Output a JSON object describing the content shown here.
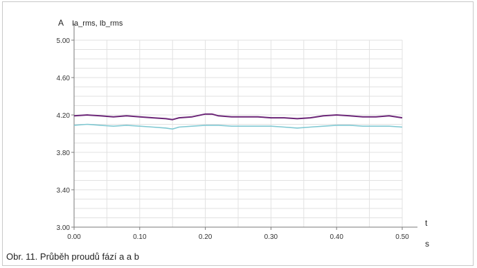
{
  "caption": "Obr. 11. Průběh proudů fází a a b",
  "chart_data": {
    "type": "line",
    "title": "Ia_rms, Ib_rms",
    "y_unit": "A",
    "xlabel": "t",
    "x_unit": "s",
    "xlim": [
      0.0,
      0.5
    ],
    "ylim": [
      3.0,
      5.0
    ],
    "x_ticks": [
      "0.00",
      "0.10",
      "0.20",
      "0.30",
      "0.40",
      "0.50"
    ],
    "y_ticks": [
      "3.00",
      "3.40",
      "3.80",
      "4.20",
      "4.60",
      "5.00"
    ],
    "grid": true,
    "x": [
      0.0,
      0.02,
      0.04,
      0.06,
      0.08,
      0.1,
      0.12,
      0.14,
      0.15,
      0.16,
      0.18,
      0.2,
      0.21,
      0.22,
      0.24,
      0.26,
      0.28,
      0.3,
      0.32,
      0.34,
      0.36,
      0.38,
      0.4,
      0.42,
      0.44,
      0.46,
      0.48,
      0.5
    ],
    "series": [
      {
        "color": "#6b2577",
        "values": [
          4.19,
          4.2,
          4.19,
          4.18,
          4.19,
          4.18,
          4.17,
          4.16,
          4.15,
          4.17,
          4.18,
          4.21,
          4.21,
          4.19,
          4.18,
          4.18,
          4.18,
          4.17,
          4.17,
          4.16,
          4.17,
          4.19,
          4.2,
          4.19,
          4.18,
          4.18,
          4.19,
          4.17
        ]
      },
      {
        "color": "#7fc8d2",
        "values": [
          4.09,
          4.1,
          4.09,
          4.08,
          4.09,
          4.08,
          4.07,
          4.06,
          4.05,
          4.07,
          4.08,
          4.09,
          4.09,
          4.09,
          4.08,
          4.08,
          4.08,
          4.08,
          4.07,
          4.06,
          4.07,
          4.08,
          4.09,
          4.09,
          4.08,
          4.08,
          4.08,
          4.07
        ]
      }
    ]
  }
}
